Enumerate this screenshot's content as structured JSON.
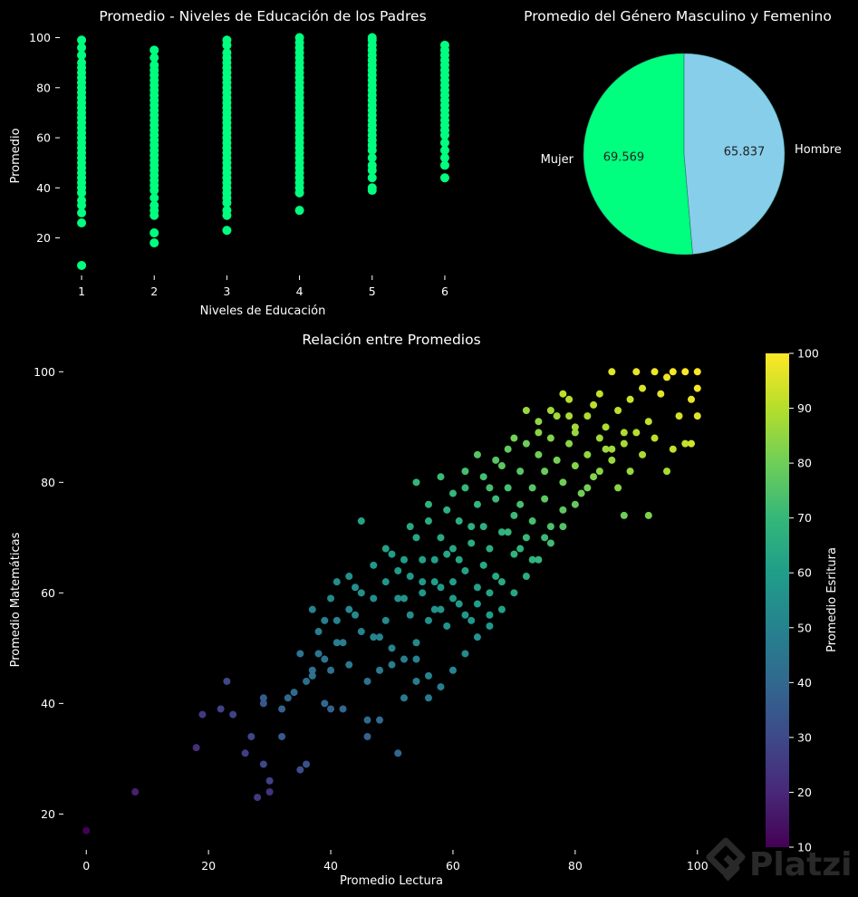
{
  "colors": {
    "background": "#000000",
    "scatter1_points": "#00ff7f",
    "pie_hombre": "#87ceeb",
    "pie_mujer": "#00ff7f",
    "pie_edge": "#2a6f5f",
    "colormap": "viridis"
  },
  "chart_data": [
    {
      "id": "education",
      "type": "scatter",
      "title": "Promedio - Niveles de Educación de los Padres",
      "xlabel": "Niveles de Educación",
      "ylabel": "Promedio",
      "xlim": [
        0.7,
        6.3
      ],
      "ylim": [
        5,
        102
      ],
      "x_ticks": [
        1,
        2,
        3,
        4,
        5,
        6
      ],
      "y_ticks": [
        20,
        40,
        60,
        80,
        100
      ],
      "series": [
        {
          "x": 1,
          "values": [
            9,
            26,
            30,
            33,
            35,
            38,
            40,
            42,
            44,
            46,
            48,
            50,
            52,
            54,
            56,
            58,
            60,
            62,
            64,
            66,
            68,
            70,
            72,
            74,
            76,
            78,
            80,
            82,
            84,
            86,
            88,
            90,
            93,
            96,
            99
          ]
        },
        {
          "x": 2,
          "values": [
            18,
            22,
            29,
            31,
            33,
            36,
            39,
            41,
            43,
            45,
            47,
            49,
            51,
            53,
            55,
            57,
            59,
            61,
            63,
            65,
            67,
            69,
            71,
            73,
            75,
            77,
            79,
            81,
            83,
            85,
            87,
            89,
            92,
            95
          ]
        },
        {
          "x": 3,
          "values": [
            23,
            29,
            31,
            34,
            36,
            38,
            40,
            42,
            44,
            46,
            48,
            50,
            52,
            54,
            56,
            58,
            60,
            62,
            64,
            66,
            68,
            70,
            72,
            74,
            76,
            78,
            80,
            82,
            84,
            86,
            88,
            90,
            92,
            94,
            97,
            99
          ]
        },
        {
          "x": 4,
          "values": [
            31,
            38,
            40,
            42,
            44,
            46,
            48,
            50,
            52,
            54,
            56,
            58,
            60,
            62,
            64,
            66,
            68,
            70,
            72,
            74,
            76,
            78,
            80,
            82,
            84,
            86,
            88,
            90,
            92,
            94,
            96,
            98,
            100
          ]
        },
        {
          "x": 5,
          "values": [
            39,
            40,
            44,
            47,
            49,
            52,
            55,
            57,
            59,
            61,
            63,
            65,
            67,
            69,
            71,
            73,
            75,
            77,
            79,
            81,
            83,
            85,
            87,
            89,
            91,
            93,
            95,
            97,
            99,
            100
          ]
        },
        {
          "x": 6,
          "values": [
            44,
            49,
            52,
            55,
            58,
            61,
            63,
            65,
            67,
            69,
            71,
            73,
            75,
            77,
            79,
            81,
            83,
            85,
            87,
            89,
            91,
            93,
            95,
            97
          ]
        }
      ]
    },
    {
      "id": "gender",
      "type": "pie",
      "title": "Promedio del Género Masculino y Femenino",
      "slices": [
        {
          "label": "Mujer",
          "value": 69.569,
          "value_label": "69.569"
        },
        {
          "label": "Hombre",
          "value": 65.837,
          "value_label": "65.837"
        }
      ]
    },
    {
      "id": "relation",
      "type": "scatter",
      "title": "Relación entre Promedios",
      "xlabel": "Promedio Lectura",
      "ylabel": "Promedio Matemáticas",
      "colorbar_label": "Promedio Esritura",
      "xlim": [
        -3,
        103
      ],
      "ylim": [
        14,
        103
      ],
      "x_ticks": [
        0,
        20,
        40,
        60,
        80,
        100
      ],
      "y_ticks": [
        20,
        40,
        60,
        80,
        100
      ],
      "colorbar_range": [
        10,
        100
      ],
      "colorbar_ticks": [
        10,
        20,
        30,
        40,
        50,
        60,
        70,
        80,
        90,
        100
      ],
      "points": [
        [
          0,
          17,
          10
        ],
        [
          8,
          24,
          18
        ],
        [
          18,
          32,
          22
        ],
        [
          19,
          38,
          25
        ],
        [
          22,
          39,
          28
        ],
        [
          23,
          44,
          30
        ],
        [
          24,
          38,
          28
        ],
        [
          26,
          31,
          27
        ],
        [
          27,
          34,
          29
        ],
        [
          28,
          23,
          25
        ],
        [
          29,
          29,
          30
        ],
        [
          29,
          40,
          34
        ],
        [
          29,
          41,
          36
        ],
        [
          30,
          26,
          28
        ],
        [
          30,
          24,
          23
        ],
        [
          32,
          34,
          35
        ],
        [
          32,
          39,
          38
        ],
        [
          33,
          41,
          40
        ],
        [
          34,
          42,
          41
        ],
        [
          35,
          28,
          31
        ],
        [
          36,
          29,
          33
        ],
        [
          36,
          44,
          42
        ],
        [
          37,
          46,
          43
        ],
        [
          37,
          45,
          44
        ],
        [
          38,
          49,
          45
        ],
        [
          38,
          53,
          48
        ],
        [
          39,
          55,
          49
        ],
        [
          39,
          40,
          40
        ],
        [
          40,
          39,
          38
        ],
        [
          40,
          46,
          43
        ],
        [
          40,
          59,
          52
        ],
        [
          41,
          55,
          50
        ],
        [
          41,
          62,
          54
        ],
        [
          42,
          51,
          48
        ],
        [
          42,
          39,
          40
        ],
        [
          43,
          63,
          55
        ],
        [
          43,
          47,
          46
        ],
        [
          44,
          56,
          52
        ],
        [
          44,
          61,
          55
        ],
        [
          45,
          73,
          62
        ],
        [
          45,
          53,
          50
        ],
        [
          46,
          37,
          40
        ],
        [
          46,
          34,
          38
        ],
        [
          46,
          44,
          44
        ],
        [
          47,
          59,
          54
        ],
        [
          47,
          65,
          58
        ],
        [
          48,
          37,
          41
        ],
        [
          48,
          52,
          50
        ],
        [
          49,
          62,
          57
        ],
        [
          49,
          55,
          53
        ],
        [
          50,
          67,
          60
        ],
        [
          50,
          47,
          48
        ],
        [
          51,
          31,
          40
        ],
        [
          51,
          59,
          55
        ],
        [
          52,
          66,
          60
        ],
        [
          52,
          41,
          46
        ],
        [
          53,
          63,
          58
        ],
        [
          53,
          56,
          54
        ],
        [
          54,
          70,
          63
        ],
        [
          54,
          48,
          50
        ],
        [
          55,
          62,
          58
        ],
        [
          55,
          60,
          57
        ],
        [
          56,
          73,
          65
        ],
        [
          56,
          45,
          50
        ],
        [
          57,
          66,
          61
        ],
        [
          57,
          57,
          56
        ],
        [
          58,
          70,
          64
        ],
        [
          58,
          61,
          59
        ],
        [
          59,
          75,
          67
        ],
        [
          59,
          54,
          56
        ],
        [
          60,
          68,
          63
        ],
        [
          60,
          62,
          60
        ],
        [
          61,
          73,
          66
        ],
        [
          61,
          58,
          59
        ],
        [
          62,
          79,
          70
        ],
        [
          62,
          64,
          62
        ],
        [
          63,
          69,
          65
        ],
        [
          63,
          55,
          58
        ],
        [
          64,
          76,
          69
        ],
        [
          64,
          61,
          61
        ],
        [
          65,
          72,
          67
        ],
        [
          65,
          81,
          73
        ],
        [
          66,
          68,
          66
        ],
        [
          66,
          60,
          62
        ],
        [
          67,
          77,
          71
        ],
        [
          67,
          84,
          76
        ],
        [
          68,
          71,
          68
        ],
        [
          68,
          62,
          64
        ],
        [
          69,
          79,
          73
        ],
        [
          69,
          86,
          78
        ],
        [
          70,
          74,
          71
        ],
        [
          70,
          67,
          68
        ],
        [
          71,
          82,
          76
        ],
        [
          71,
          76,
          73
        ],
        [
          72,
          87,
          80
        ],
        [
          72,
          70,
          71
        ],
        [
          73,
          79,
          76
        ],
        [
          73,
          73,
          73
        ],
        [
          74,
          85,
          80
        ],
        [
          74,
          91,
          85
        ],
        [
          75,
          77,
          77
        ],
        [
          75,
          82,
          79
        ],
        [
          76,
          88,
          83
        ],
        [
          76,
          72,
          74
        ],
        [
          77,
          84,
          81
        ],
        [
          77,
          92,
          87
        ],
        [
          78,
          80,
          80
        ],
        [
          78,
          75,
          77
        ],
        [
          79,
          87,
          84
        ],
        [
          79,
          95,
          90
        ],
        [
          80,
          83,
          83
        ],
        [
          80,
          89,
          86
        ],
        [
          81,
          78,
          80
        ],
        [
          82,
          92,
          89
        ],
        [
          82,
          85,
          85
        ],
        [
          83,
          81,
          83
        ],
        [
          84,
          96,
          92
        ],
        [
          84,
          88,
          87
        ],
        [
          85,
          90,
          89
        ],
        [
          86,
          84,
          86
        ],
        [
          86,
          100,
          96
        ],
        [
          87,
          93,
          91
        ],
        [
          88,
          87,
          88
        ],
        [
          88,
          74,
          80
        ],
        [
          89,
          95,
          93
        ],
        [
          90,
          89,
          90
        ],
        [
          90,
          100,
          97
        ],
        [
          91,
          97,
          95
        ],
        [
          92,
          91,
          92
        ],
        [
          92,
          74,
          82
        ],
        [
          93,
          100,
          98
        ],
        [
          94,
          96,
          96
        ],
        [
          95,
          99,
          98
        ],
        [
          95,
          82,
          88
        ],
        [
          96,
          100,
          99
        ],
        [
          97,
          92,
          94
        ],
        [
          98,
          100,
          100
        ],
        [
          98,
          87,
          92
        ],
        [
          99,
          95,
          97
        ],
        [
          100,
          100,
          100
        ],
        [
          100,
          92,
          96
        ],
        [
          100,
          97,
          99
        ],
        [
          45,
          60,
          55
        ],
        [
          47,
          52,
          51
        ],
        [
          49,
          68,
          61
        ],
        [
          51,
          64,
          59
        ],
        [
          53,
          72,
          64
        ],
        [
          55,
          66,
          61
        ],
        [
          57,
          62,
          60
        ],
        [
          59,
          67,
          63
        ],
        [
          61,
          66,
          63
        ],
        [
          63,
          72,
          67
        ],
        [
          65,
          65,
          64
        ],
        [
          67,
          63,
          64
        ],
        [
          69,
          71,
          69
        ],
        [
          71,
          68,
          68
        ],
        [
          73,
          66,
          68
        ],
        [
          75,
          70,
          71
        ],
        [
          52,
          59,
          56
        ],
        [
          54,
          51,
          52
        ],
        [
          56,
          55,
          55
        ],
        [
          58,
          57,
          57
        ],
        [
          60,
          59,
          59
        ],
        [
          62,
          56,
          58
        ],
        [
          64,
          58,
          60
        ],
        [
          66,
          56,
          60
        ],
        [
          43,
          57,
          52
        ],
        [
          41,
          51,
          48
        ],
        [
          39,
          48,
          45
        ],
        [
          37,
          57,
          50
        ],
        [
          35,
          49,
          45
        ],
        [
          48,
          46,
          47
        ],
        [
          50,
          50,
          50
        ],
        [
          52,
          48,
          49
        ],
        [
          54,
          44,
          48
        ],
        [
          56,
          41,
          47
        ],
        [
          58,
          43,
          49
        ],
        [
          60,
          46,
          51
        ],
        [
          62,
          49,
          53
        ],
        [
          64,
          52,
          56
        ],
        [
          66,
          54,
          58
        ],
        [
          68,
          57,
          61
        ],
        [
          70,
          60,
          63
        ],
        [
          72,
          63,
          66
        ],
        [
          74,
          66,
          69
        ],
        [
          76,
          69,
          72
        ],
        [
          78,
          72,
          75
        ],
        [
          80,
          76,
          78
        ],
        [
          82,
          79,
          81
        ],
        [
          84,
          82,
          84
        ],
        [
          86,
          86,
          87
        ],
        [
          88,
          89,
          89
        ],
        [
          70,
          88,
          81
        ],
        [
          68,
          83,
          77
        ],
        [
          66,
          79,
          73
        ],
        [
          64,
          85,
          76
        ],
        [
          62,
          82,
          73
        ],
        [
          60,
          78,
          70
        ],
        [
          58,
          81,
          71
        ],
        [
          56,
          76,
          68
        ],
        [
          54,
          80,
          69
        ],
        [
          76,
          93,
          87
        ],
        [
          74,
          89,
          84
        ],
        [
          78,
          96,
          91
        ],
        [
          80,
          90,
          87
        ],
        [
          83,
          94,
          91
        ],
        [
          85,
          86,
          87
        ],
        [
          87,
          79,
          84
        ],
        [
          89,
          82,
          86
        ],
        [
          91,
          85,
          88
        ],
        [
          93,
          88,
          91
        ],
        [
          96,
          86,
          92
        ],
        [
          99,
          87,
          94
        ],
        [
          72,
          93,
          86
        ],
        [
          79,
          92,
          88
        ]
      ]
    }
  ]
}
